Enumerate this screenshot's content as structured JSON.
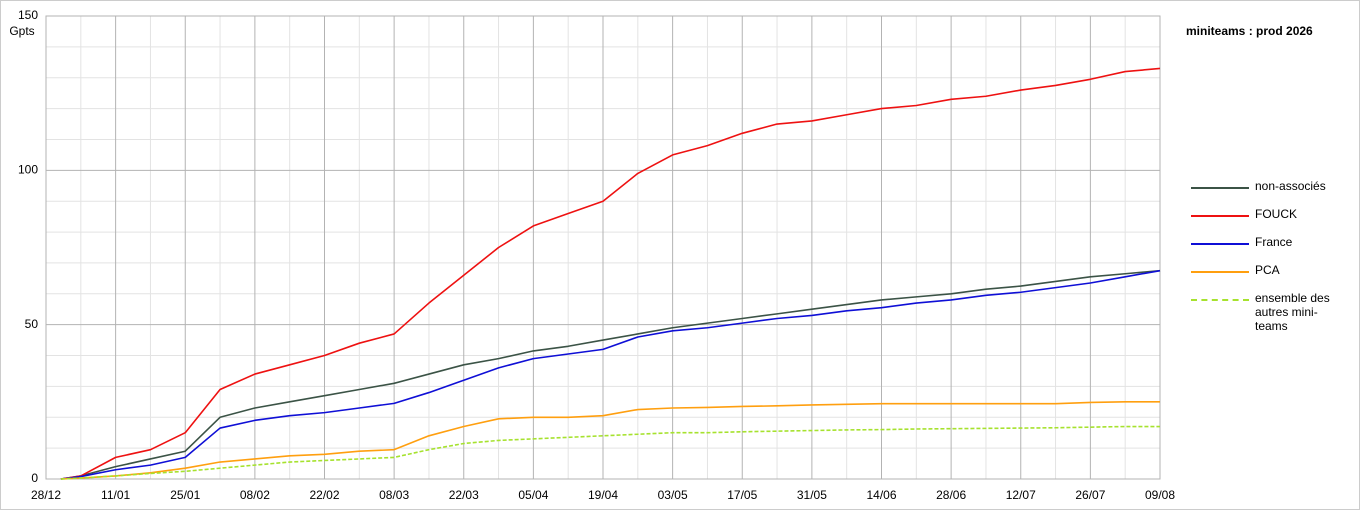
{
  "chart_data": {
    "type": "line",
    "title": "miniteams : prod 2026",
    "y_label": "Gpts",
    "x": [
      "31/12",
      "04/01",
      "11/01",
      "18/01",
      "25/01",
      "01/02",
      "08/02",
      "15/02",
      "22/02",
      "01/03",
      "08/03",
      "15/03",
      "22/03",
      "29/03",
      "05/04",
      "12/04",
      "19/04",
      "26/04",
      "03/05",
      "10/05",
      "17/05",
      "24/05",
      "31/05",
      "07/06",
      "14/06",
      "21/06",
      "28/06",
      "05/07",
      "12/07",
      "19/07",
      "26/07",
      "02/08",
      "09/08"
    ],
    "series": [
      {
        "name": "non-associés",
        "color": "#3b5346",
        "values": [
          0,
          1,
          4,
          6.5,
          9,
          20,
          23,
          25,
          27,
          29,
          31,
          34,
          37,
          39,
          41.5,
          43,
          45,
          47,
          49,
          50.5,
          52,
          53.5,
          55,
          56.5,
          58,
          59,
          60,
          61.5,
          62.5,
          64,
          65.5,
          66.5,
          67.5
        ]
      },
      {
        "name": "FOUCK",
        "color": "#ee1111",
        "values": [
          0,
          1,
          7,
          9.5,
          15,
          29,
          34,
          37,
          40,
          44,
          47,
          57,
          66,
          75,
          82,
          86,
          90,
          99,
          105,
          108,
          112,
          115,
          116,
          118,
          120,
          121,
          123,
          124,
          126,
          127.5,
          129.5,
          132,
          133
        ]
      },
      {
        "name": "France",
        "color": "#0f0fd6",
        "values": [
          0,
          0.8,
          3,
          4.5,
          7,
          16.5,
          19,
          20.5,
          21.5,
          23,
          24.5,
          28,
          32,
          36,
          39,
          40.5,
          42,
          46,
          48,
          49,
          50.5,
          52,
          53,
          54.5,
          55.5,
          57,
          58,
          59.5,
          60.5,
          62,
          63.5,
          65.5,
          67.5
        ]
      },
      {
        "name": "PCA",
        "color": "#ff9f0f",
        "values": [
          0,
          0.3,
          1,
          2,
          3.5,
          5.5,
          6.5,
          7.5,
          8,
          9,
          9.5,
          14,
          17,
          19.5,
          20,
          20,
          20.5,
          22.5,
          23,
          23.2,
          23.5,
          23.7,
          24,
          24.2,
          24.4,
          24.4,
          24.4,
          24.4,
          24.4,
          24.4,
          24.8,
          25,
          25
        ]
      },
      {
        "name": "ensemble des autres mini-teams",
        "color": "#a6e22e",
        "style": "dashed",
        "values": [
          0,
          0.3,
          1,
          1.8,
          2.5,
          3.5,
          4.5,
          5.5,
          6,
          6.5,
          7,
          9.5,
          11.5,
          12.5,
          13,
          13.5,
          14,
          14.5,
          15,
          15,
          15.3,
          15.5,
          15.7,
          15.9,
          16,
          16.2,
          16.3,
          16.4,
          16.5,
          16.6,
          16.8,
          17,
          17
        ]
      }
    ],
    "xlim": [
      "28/12",
      "09/08"
    ],
    "xticks": [
      "28/12",
      "11/01",
      "25/01",
      "08/02",
      "22/02",
      "08/03",
      "22/03",
      "05/04",
      "19/04",
      "03/05",
      "17/05",
      "31/05",
      "14/06",
      "28/06",
      "12/07",
      "26/07",
      "09/08"
    ],
    "minor_xticks": [
      "04/01",
      "18/01",
      "01/02",
      "15/02",
      "01/03",
      "15/03",
      "29/03",
      "12/04",
      "26/04",
      "10/05",
      "24/05",
      "07/06",
      "21/06",
      "05/07",
      "19/07",
      "02/08"
    ],
    "ylim": [
      0,
      150
    ],
    "yticks": [
      0,
      50,
      100,
      150
    ],
    "minor_yticks": [
      10,
      20,
      30,
      40,
      60,
      70,
      80,
      90,
      110,
      120,
      130,
      140
    ],
    "grid": true,
    "legend": "right"
  }
}
